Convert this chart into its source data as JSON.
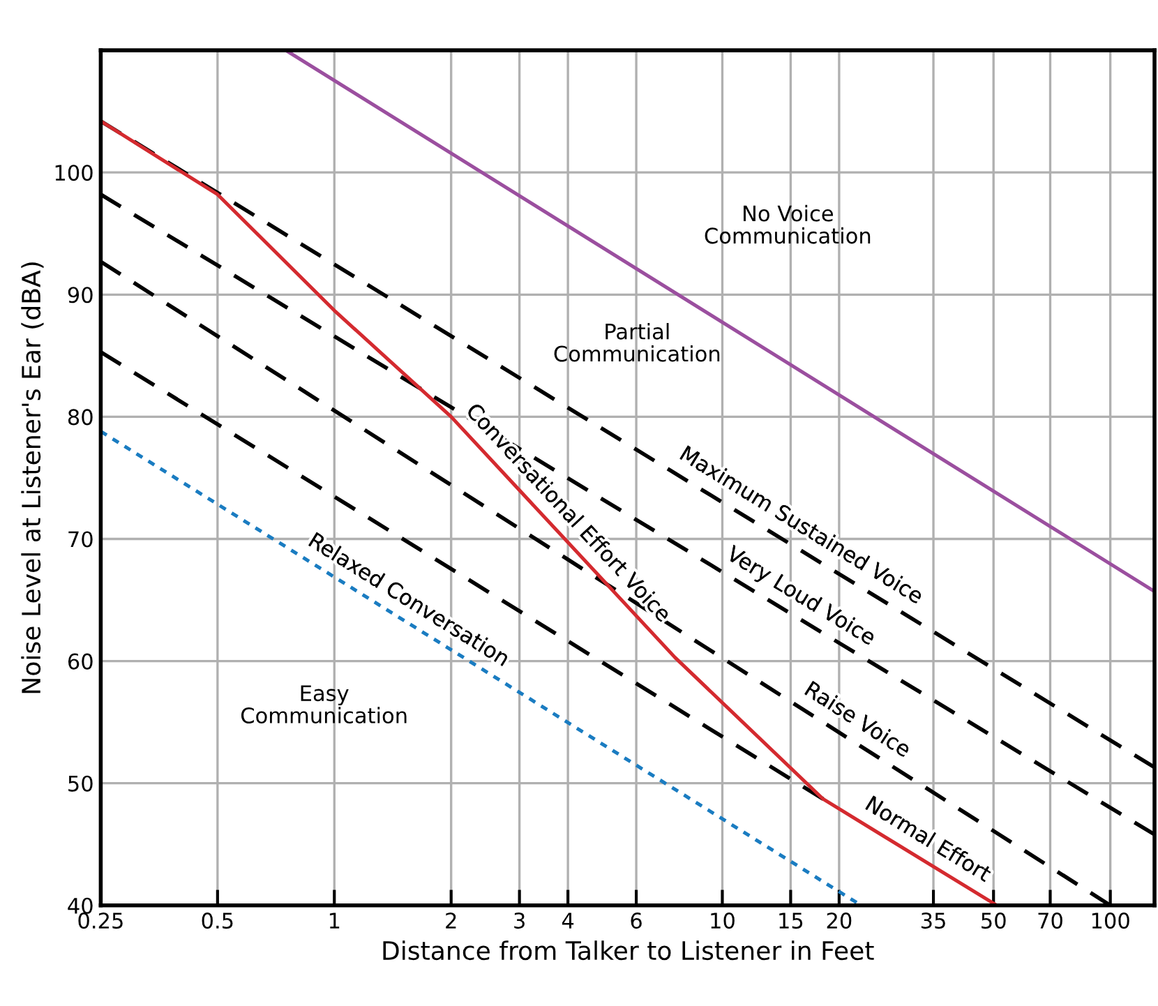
{
  "chart_data": {
    "type": "line",
    "xlabel": "Distance from Talker to Listener in Feet",
    "ylabel": "Noise Level at Listener's Ear (dBA)",
    "log": "x",
    "xlim": [
      0.25,
      130
    ],
    "xticks": [
      0.25,
      0.5,
      1,
      2,
      3,
      4,
      6,
      10,
      15,
      20,
      35,
      50,
      70,
      100
    ],
    "ylim": [
      40,
      110
    ],
    "yticks": [
      40,
      50,
      60,
      70,
      80,
      90,
      100
    ],
    "grid": true,
    "marker": "none",
    "series": [
      {
        "color": "#9b4f9f",
        "line_style": "solid",
        "x": [
          0.75,
          130
        ],
        "values": [
          110,
          65.7
        ]
      },
      {
        "color": "#000000",
        "line_style": "dashed",
        "x": [
          0.25,
          130
        ],
        "values": [
          104.2,
          51.3
        ]
      },
      {
        "color": "#000000",
        "line_style": "dashed",
        "x": [
          0.25,
          130
        ],
        "values": [
          98.2,
          45.8
        ]
      },
      {
        "color": "#000000",
        "line_style": "dashed",
        "x": [
          0.25,
          100
        ],
        "values": [
          92.7,
          40
        ]
      },
      {
        "color": "#000000",
        "line_style": "dashed",
        "x": [
          0.25,
          18.2
        ],
        "values": [
          85.3,
          48.7
        ]
      },
      {
        "color": "#d42a2f",
        "line_style": "solid",
        "x": [
          0.25,
          0.5,
          1,
          2,
          7.55,
          18.2,
          51
        ],
        "values": [
          104.2,
          98.2,
          88.7,
          80,
          60.3,
          48.7,
          40
        ]
      },
      {
        "color": "#1a7cc1",
        "line_style": "dotted",
        "x": [
          0.25,
          22.8
        ],
        "values": [
          78.8,
          40
        ]
      }
    ],
    "annotations": [
      "No Voice\nCommunication",
      "Partial\nCommunication",
      "Easy\nCommunication",
      {
        "text": "Conversational Effort Voice",
        "x": 3.67,
        "y": 71.0
      },
      {
        "text": "Maximum Sustained Voice",
        "x": 15,
        "y": 69.7
      },
      {
        "text": "Very Loud Voice",
        "x": 15,
        "y": 63.9
      },
      {
        "text": "Raise Voice",
        "x": 20.9,
        "y": 53.8
      },
      {
        "text": "Normal Effort",
        "x": 31.8,
        "y": 44.0
      },
      {
        "text": "Relaxed Conversation",
        "x": 1.46,
        "y": 63.6
      }
    ]
  }
}
